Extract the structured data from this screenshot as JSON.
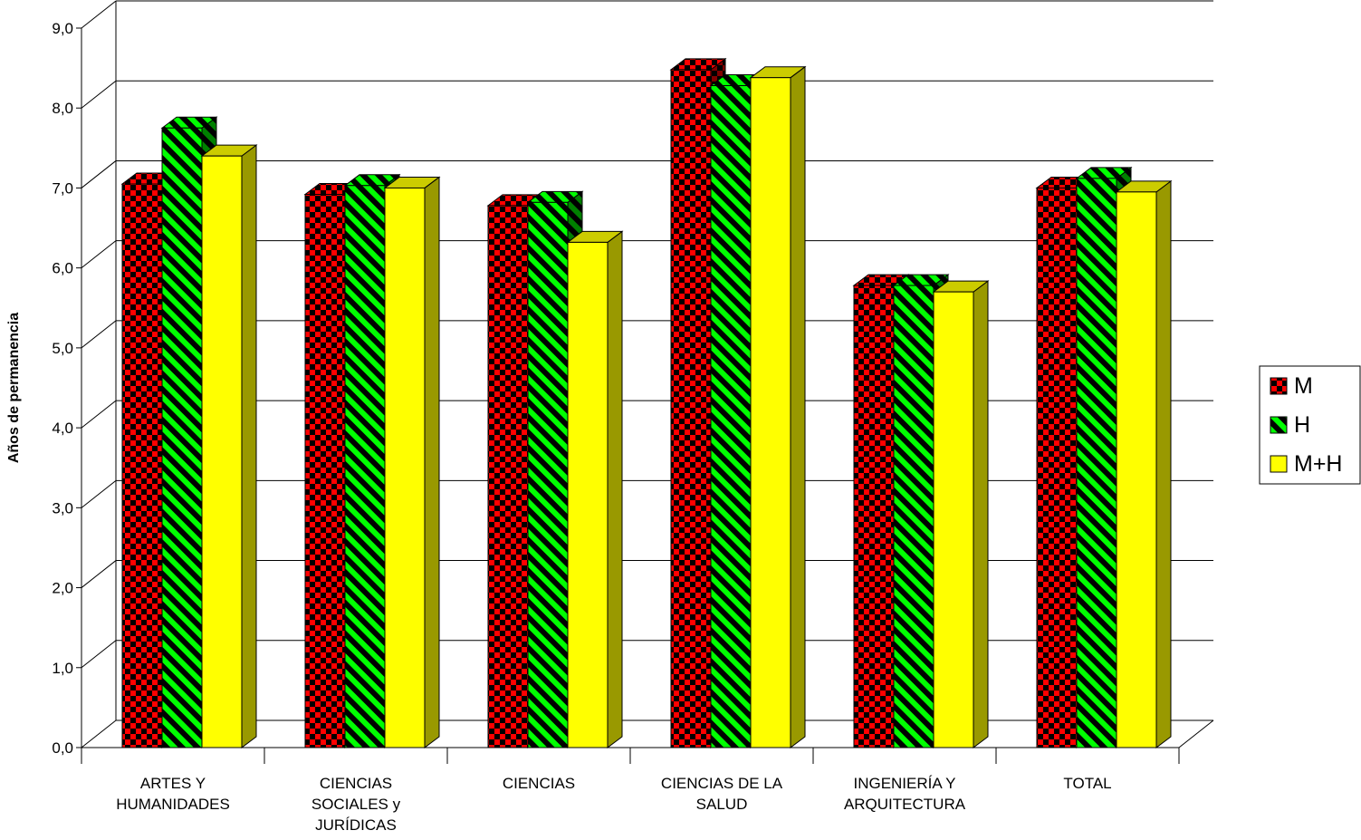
{
  "chart_data": {
    "type": "bar",
    "title": "",
    "xlabel": "",
    "ylabel": "Años de permanencia",
    "ylim": [
      0,
      9
    ],
    "yticks": [
      "0,0",
      "1,0",
      "2,0",
      "3,0",
      "4,0",
      "5,0",
      "6,0",
      "7,0",
      "8,0",
      "9,0"
    ],
    "grid": true,
    "legend_position": "right",
    "categories": [
      [
        "ARTES Y",
        "HUMANIDADES"
      ],
      [
        "CIENCIAS",
        "SOCIALES y",
        "JURÍDICAS"
      ],
      [
        "CIENCIAS"
      ],
      [
        "CIENCIAS DE LA",
        "SALUD"
      ],
      [
        "INGENIERÍA Y",
        "ARQUITECTURA"
      ],
      [
        "TOTAL"
      ]
    ],
    "series": [
      {
        "name": "M",
        "values": [
          7.05,
          6.92,
          6.78,
          8.48,
          5.78,
          7.0
        ],
        "color": "#ff0000",
        "pattern": "checker"
      },
      {
        "name": "H",
        "values": [
          7.75,
          7.03,
          6.82,
          8.28,
          5.78,
          7.12
        ],
        "color": "#00ff00",
        "pattern": "diagonal-stripes"
      },
      {
        "name": "M+H",
        "values": [
          7.4,
          7.0,
          6.32,
          8.38,
          5.7,
          6.95
        ],
        "color": "#ffff00",
        "pattern": "solid"
      }
    ]
  }
}
